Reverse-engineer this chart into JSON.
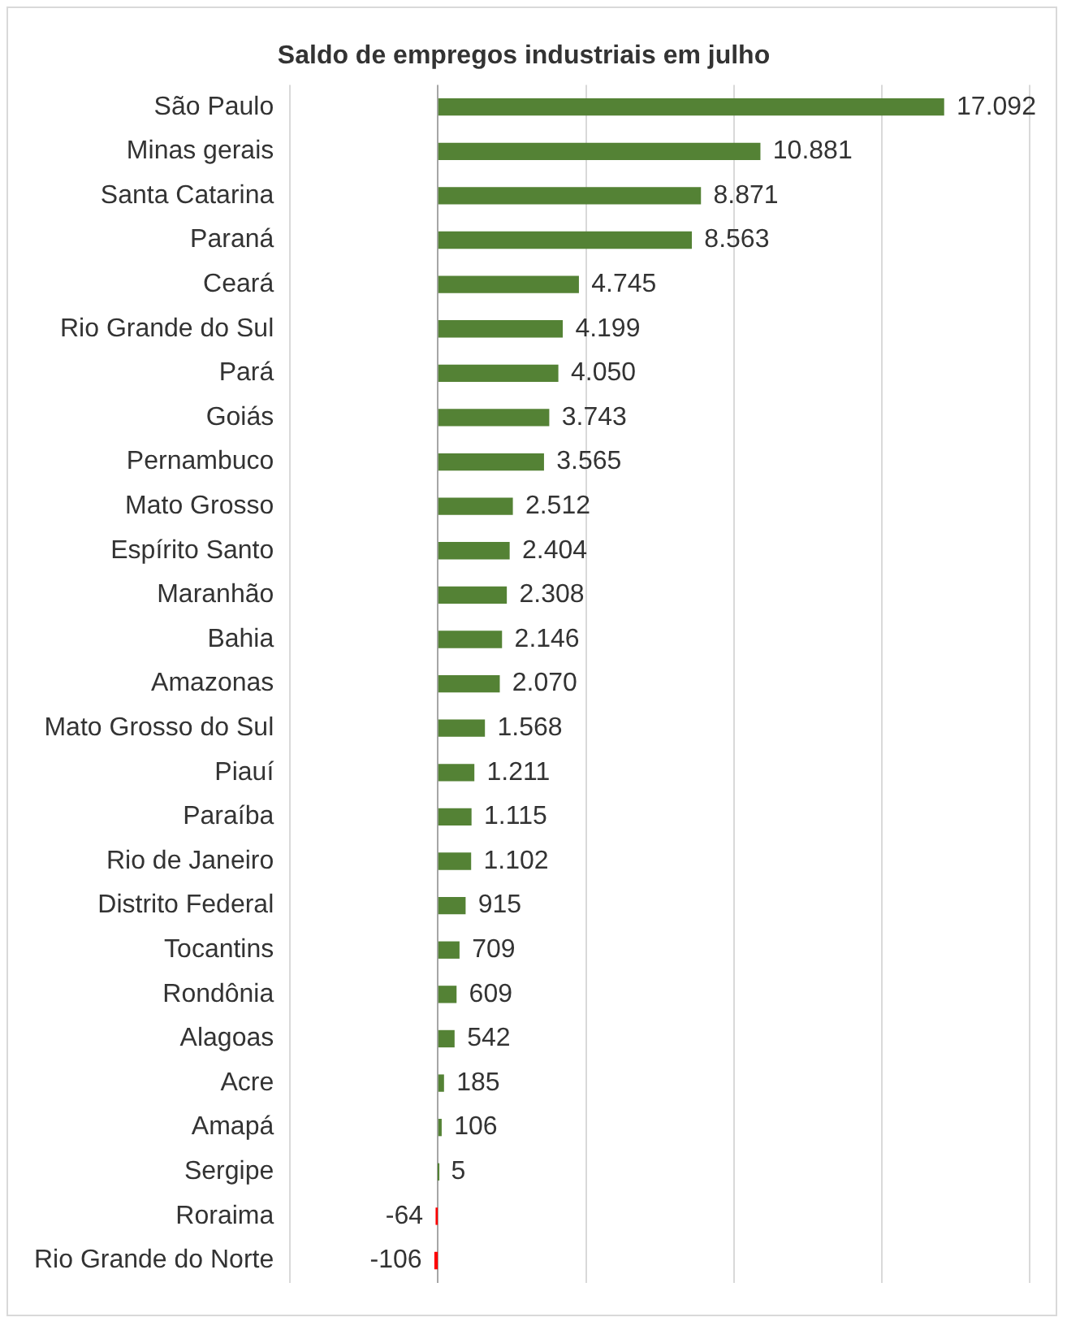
{
  "chart_data": {
    "type": "bar",
    "orientation": "horizontal",
    "title": "Saldo de empregos industriais em julho",
    "categories": [
      "São Paulo",
      "Minas gerais",
      "Santa Catarina",
      "Paraná",
      "Ceará",
      "Rio Grande do Sul",
      "Pará",
      "Goiás",
      "Pernambuco",
      "Mato Grosso",
      "Espírito Santo",
      "Maranhão",
      "Bahia",
      "Amazonas",
      "Mato Grosso do Sul",
      "Piauí",
      "Paraíba",
      "Rio de Janeiro",
      "Distrito Federal",
      "Tocantins",
      "Rondônia",
      "Alagoas",
      "Acre",
      "Amapá",
      "Sergipe",
      "Roraima",
      "Rio Grande do Norte"
    ],
    "values": [
      17092,
      10881,
      8871,
      8563,
      4745,
      4199,
      4050,
      3743,
      3565,
      2512,
      2404,
      2308,
      2146,
      2070,
      1568,
      1211,
      1115,
      1102,
      915,
      709,
      609,
      542,
      185,
      106,
      5,
      -64,
      -106
    ],
    "value_labels": [
      "17.092",
      "10.881",
      "8.871",
      "8.563",
      "4.745",
      "4.199",
      "4.050",
      "3.743",
      "3.565",
      "2.512",
      "2.404",
      "2.308",
      "2.146",
      "2.070",
      "1.568",
      "1.211",
      "1.115",
      "1.102",
      "915",
      "709",
      "609",
      "542",
      "185",
      "106",
      "5",
      "-64",
      "-106"
    ],
    "colors": [
      "#548235",
      "#548235",
      "#548235",
      "#548235",
      "#548235",
      "#548235",
      "#548235",
      "#548235",
      "#548235",
      "#548235",
      "#548235",
      "#548235",
      "#548235",
      "#548235",
      "#548235",
      "#548235",
      "#548235",
      "#548235",
      "#548235",
      "#548235",
      "#548235",
      "#548235",
      "#548235",
      "#548235",
      "#548235",
      "#ff0000",
      "#ff0000"
    ],
    "xlim": [
      -5000,
      20000
    ],
    "xticks": [
      {
        "value": -5000,
        "label": null
      },
      {
        "value": 0,
        "label": null
      },
      {
        "value": 5000,
        "label": null
      },
      {
        "value": 10000,
        "label": null
      },
      {
        "value": 15000,
        "label": null
      },
      {
        "value": 20000,
        "label": null
      }
    ],
    "grid": "x",
    "tick_labels": "y"
  }
}
